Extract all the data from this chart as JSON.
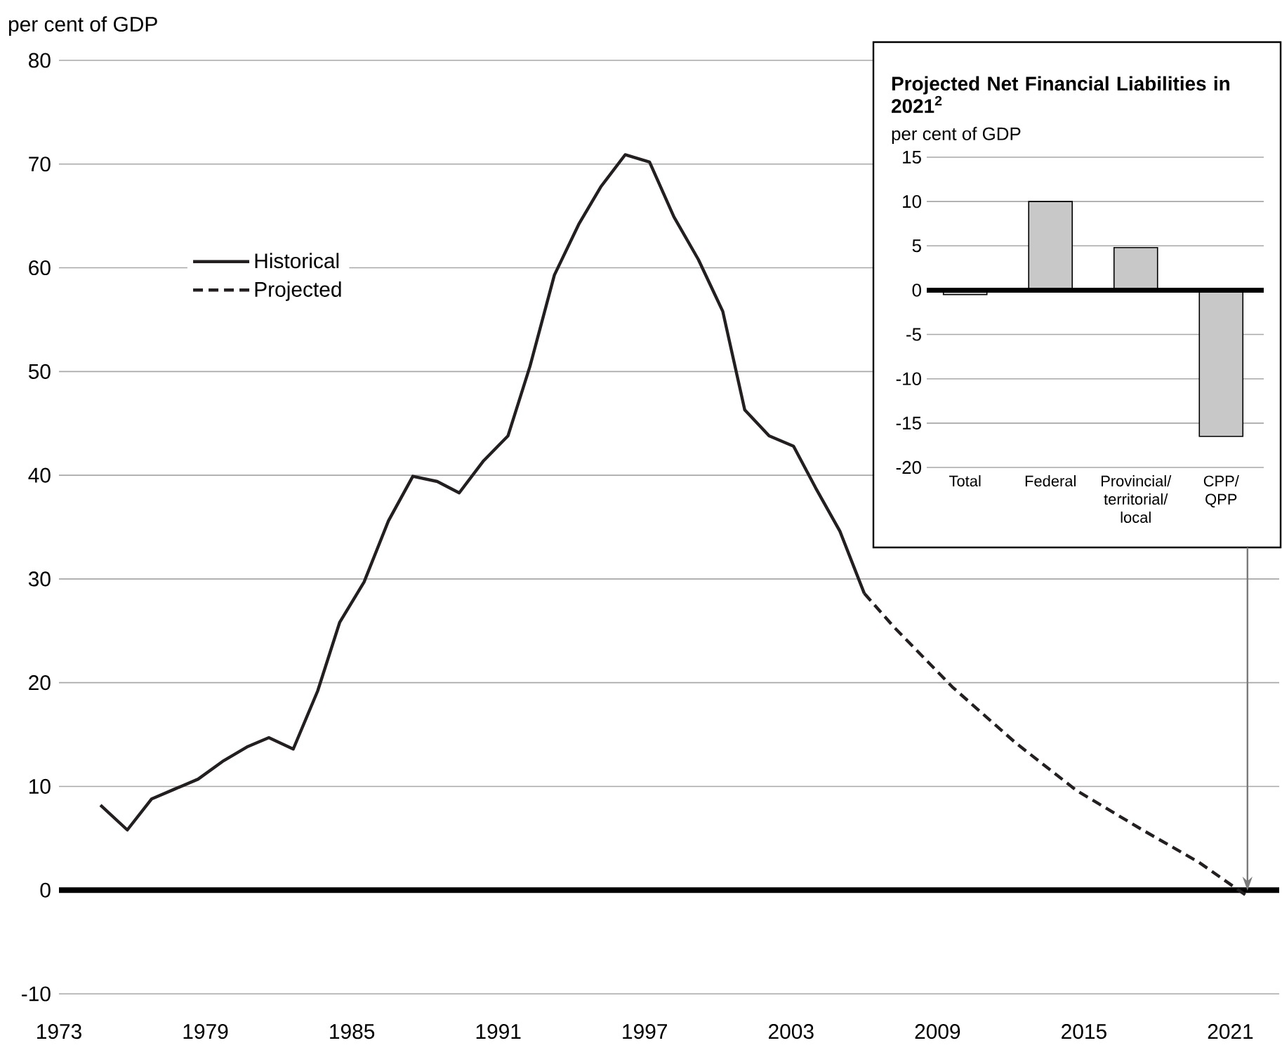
{
  "chart_data": [
    {
      "type": "line",
      "ylabel": "per cent of GDP",
      "xlim": [
        1973,
        2023
      ],
      "xticks": [
        1973,
        1979,
        1985,
        1991,
        1997,
        2003,
        2009,
        2015,
        2021
      ],
      "ylim": [
        -10,
        80
      ],
      "yticks": [
        -10,
        0,
        10,
        20,
        30,
        40,
        50,
        60,
        70,
        80
      ],
      "grid": "y",
      "legend": "top left",
      "series": [
        {
          "name": "Historical",
          "color": "#231f20",
          "line_style": "solid",
          "x": [
            1974.7,
            1975.8,
            1976.8,
            1977.7,
            1978.7,
            1979.7,
            1980.7,
            1981.6,
            1982.6,
            1983.6,
            1984.5,
            1985.5,
            1986.5,
            1987.5,
            1988.5,
            1989.4,
            1990.4,
            1991.4,
            1992.3,
            1993.3,
            1994.3,
            1995.2,
            1996.2,
            1997.2,
            1998.2,
            1999.2,
            2000.2,
            2001.1,
            2002.1,
            2003.1,
            2004.0,
            2005.0,
            2006.0
          ],
          "values": [
            8.2,
            5.8,
            8.8,
            9.7,
            10.7,
            12.4,
            13.8,
            14.7,
            13.6,
            19.2,
            25.8,
            29.7,
            35.6,
            39.9,
            39.4,
            38.3,
            41.4,
            43.8,
            50.5,
            59.3,
            64.2,
            67.8,
            70.9,
            70.2,
            64.9,
            60.8,
            55.8,
            46.3,
            43.8,
            42.8,
            38.8,
            34.6,
            28.6
          ]
        },
        {
          "name": "Projected",
          "color": "#231f20",
          "line_style": "dashed",
          "x": [
            2006.0,
            2007.2,
            2009.6,
            2012.2,
            2014.7,
            2017.4,
            2019.7,
            2021.7
          ],
          "values": [
            28.6,
            25.4,
            19.6,
            14.2,
            9.6,
            5.8,
            2.7,
            -0.6
          ]
        }
      ]
    },
    {
      "type": "bar",
      "title": "Projected Net Financial Liabilities in 2021$^{2}$",
      "ylabel": "per cent of GDP",
      "categories": [
        "Total",
        "Federal",
        "Provincial/ territorial/ local",
        "CPP/ QPP"
      ],
      "values": [
        -0.5,
        10,
        4.8,
        -16.5
      ],
      "color": "#c8c8c8",
      "ylim": [
        -20,
        15
      ],
      "yticks": [
        -20,
        -15,
        -10,
        -5,
        0,
        5,
        10,
        15
      ],
      "grid": "y"
    }
  ]
}
